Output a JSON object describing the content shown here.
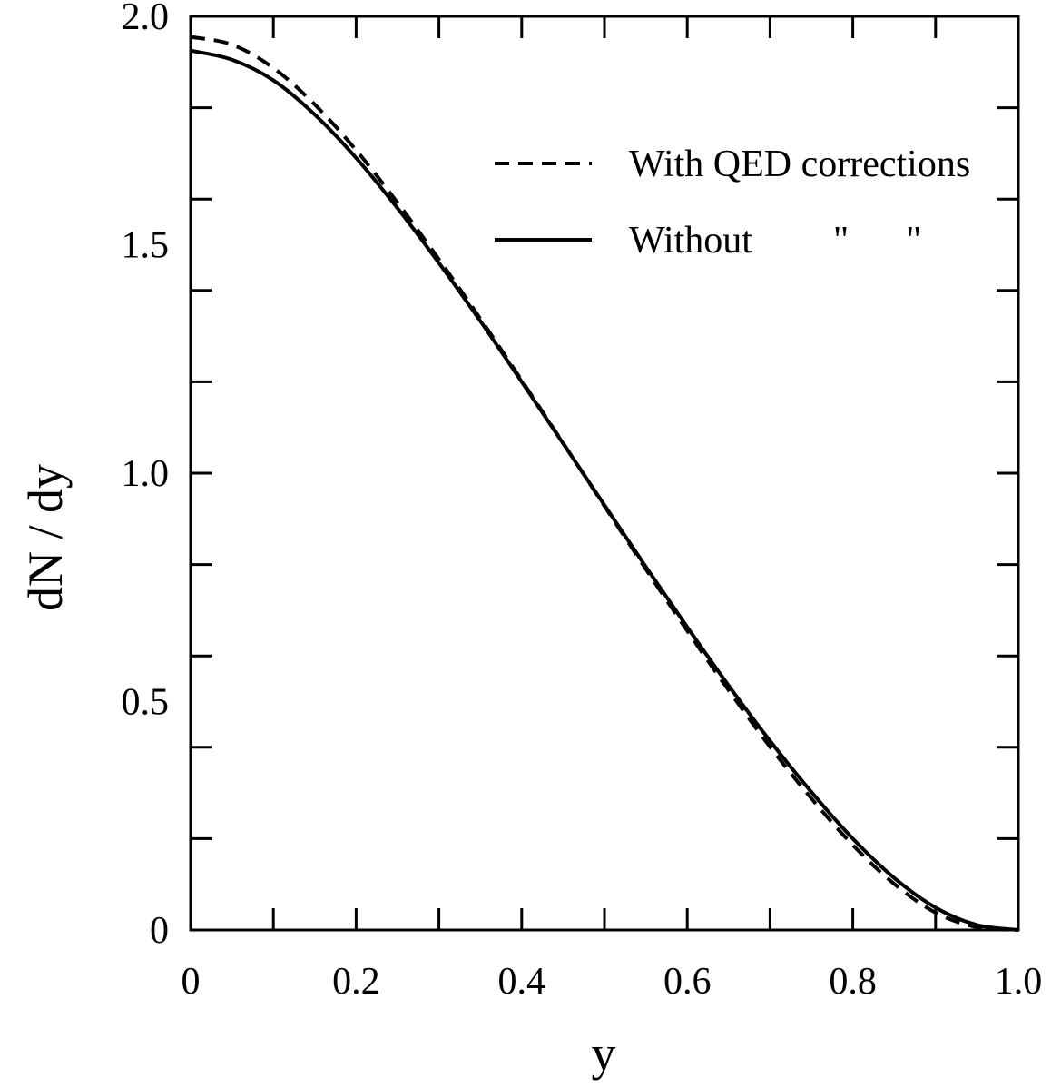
{
  "chart_data": {
    "type": "line",
    "title": "",
    "xlabel": "y",
    "ylabel": "dN / dy",
    "xlim": [
      0,
      1.0
    ],
    "ylim": [
      0,
      2.0
    ],
    "xticks": [
      {
        "value": 0,
        "label": "0"
      },
      {
        "value": 0.2,
        "label": "0.2"
      },
      {
        "value": 0.4,
        "label": "0.4"
      },
      {
        "value": 0.6,
        "label": "0.6"
      },
      {
        "value": 0.8,
        "label": "0.8"
      },
      {
        "value": 1.0,
        "label": "1.0"
      }
    ],
    "yticks": [
      {
        "value": 0,
        "label": "0"
      },
      {
        "value": 0.5,
        "label": "0.5"
      },
      {
        "value": 1.0,
        "label": "1.0"
      },
      {
        "value": 1.5,
        "label": "1.5"
      },
      {
        "value": 2.0,
        "label": "2.0"
      }
    ],
    "grid": false,
    "legend_position": "top-right",
    "legend": [
      {
        "label": "With QED corrections",
        "style": "dashed"
      },
      {
        "label": "Without",
        "ditto": "\"      \"",
        "style": "solid"
      }
    ],
    "series": [
      {
        "name": "With QED corrections",
        "style": "dashed",
        "color": "#000000",
        "x": [
          0,
          0.05,
          0.1,
          0.15,
          0.2,
          0.25,
          0.3,
          0.35,
          0.4,
          0.45,
          0.5,
          0.55,
          0.6,
          0.65,
          0.7,
          0.75,
          0.8,
          0.85,
          0.9,
          0.95,
          1.0
        ],
        "y": [
          1.955,
          1.938,
          1.887,
          1.807,
          1.707,
          1.592,
          1.468,
          1.338,
          1.203,
          1.066,
          0.928,
          0.79,
          0.655,
          0.525,
          0.401,
          0.288,
          0.186,
          0.101,
          0.038,
          0.006,
          0.0
        ]
      },
      {
        "name": "Without",
        "style": "solid",
        "color": "#000000",
        "x": [
          0,
          0.05,
          0.1,
          0.15,
          0.2,
          0.25,
          0.3,
          0.35,
          0.4,
          0.45,
          0.5,
          0.55,
          0.6,
          0.65,
          0.7,
          0.75,
          0.8,
          0.85,
          0.9,
          0.95,
          1.0
        ],
        "y": [
          1.925,
          1.905,
          1.86,
          1.785,
          1.69,
          1.58,
          1.46,
          1.333,
          1.2,
          1.065,
          0.93,
          0.795,
          0.663,
          0.535,
          0.414,
          0.302,
          0.2,
          0.114,
          0.049,
          0.011,
          0.0
        ]
      }
    ]
  }
}
